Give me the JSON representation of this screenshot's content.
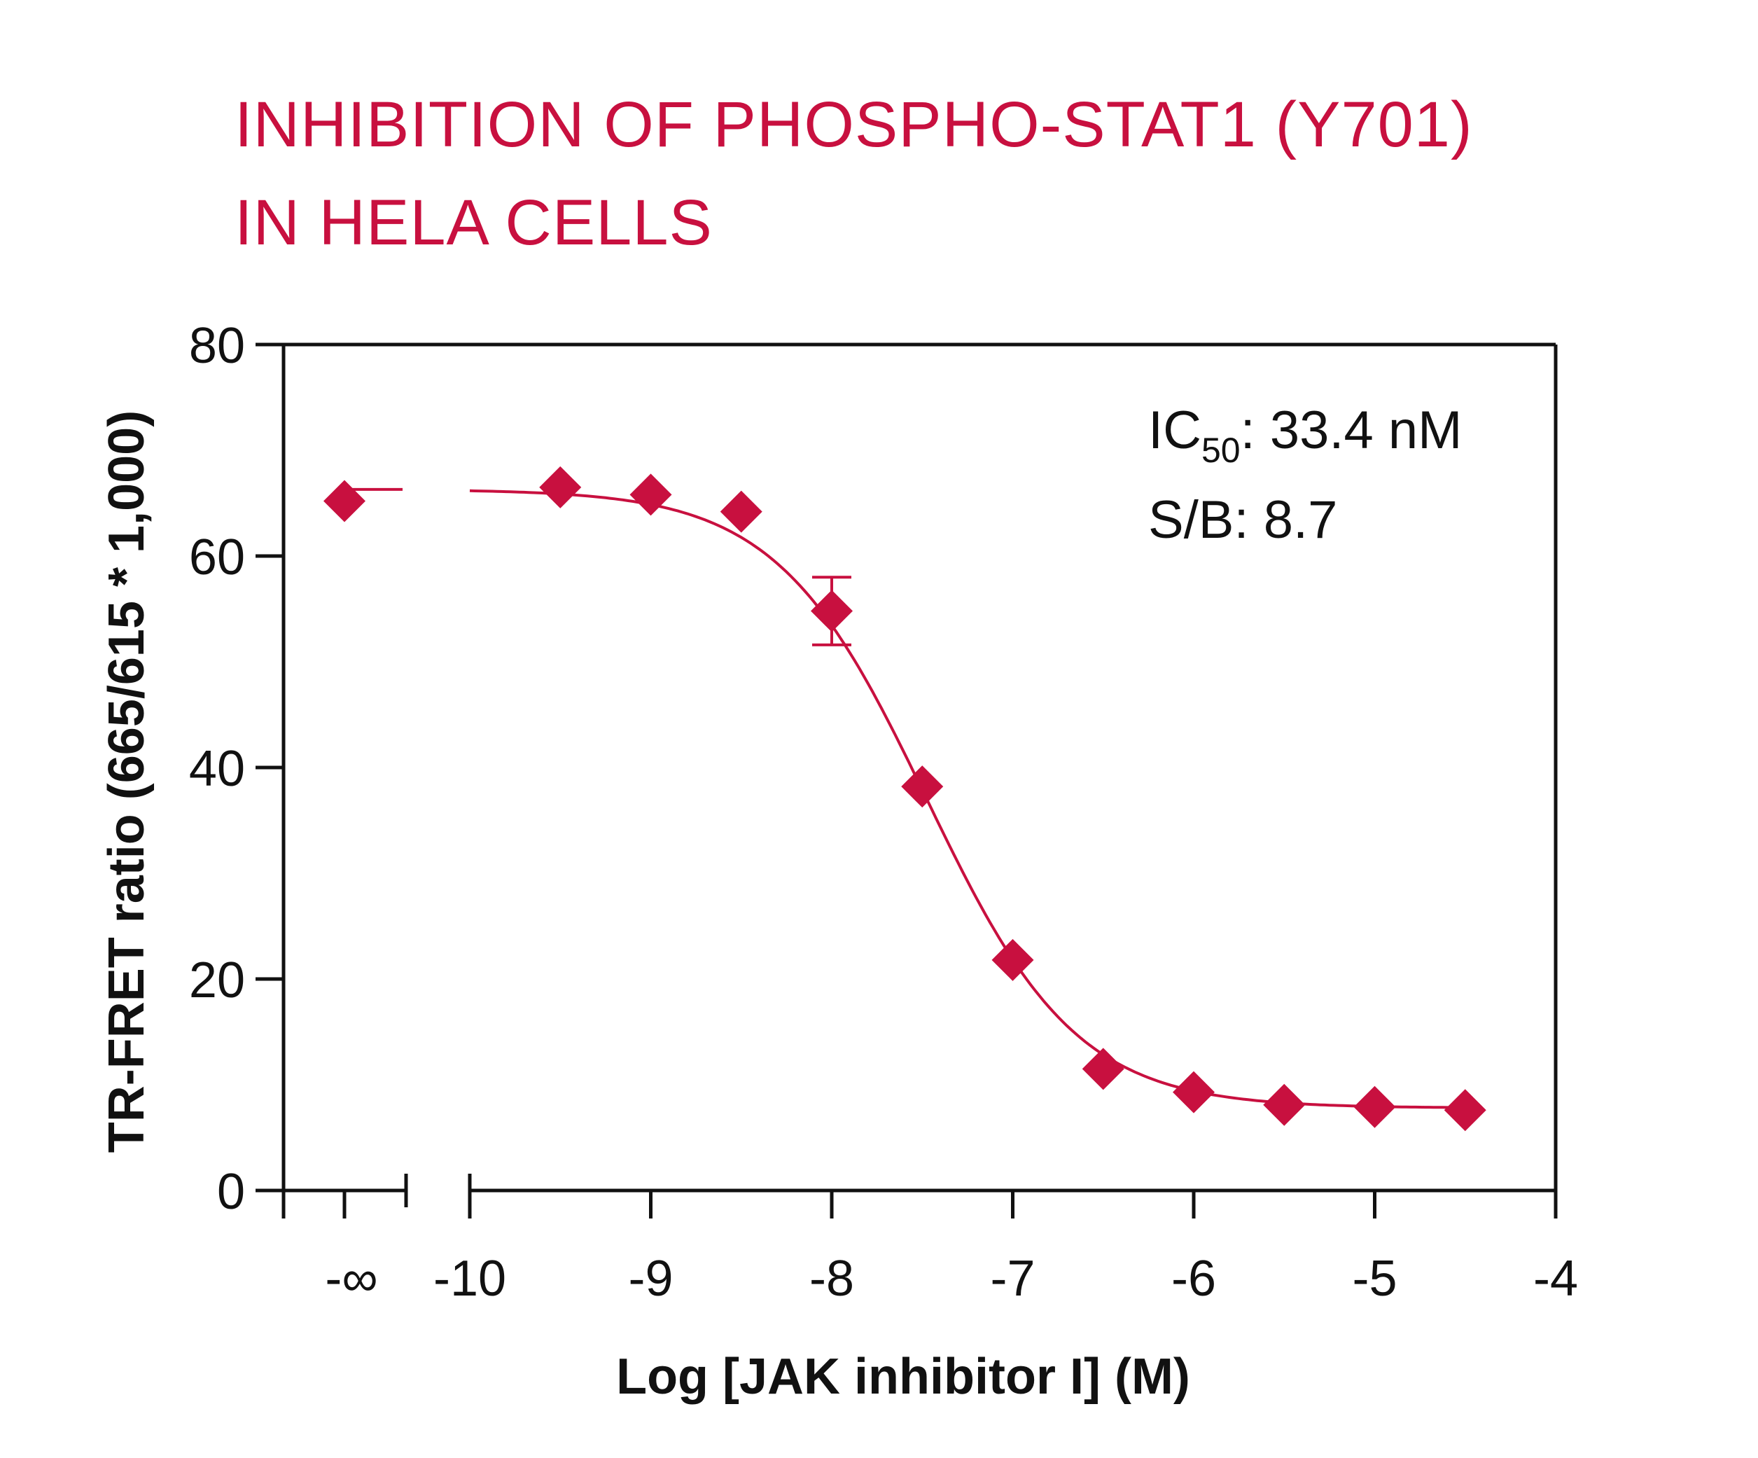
{
  "title_lines": [
    "INHIBITION OF PHOSPHO-STAT1 (Y701)",
    "IN HELA CELLS"
  ],
  "colors": {
    "accent": "#c8103f",
    "axis": "#111111"
  },
  "chart_data": {
    "type": "scatter",
    "title": "INHIBITION OF PHOSPHO-STAT1 (Y701) IN HELA CELLS",
    "xlabel": "Log [JAK inhibitor I] (M)",
    "ylabel": "TR-FRET ratio (665/615 * 1,000)",
    "xlim": [
      -10,
      -4
    ],
    "ylim": [
      0,
      80
    ],
    "x_ticks": [
      "-10",
      "-9",
      "-8",
      "-7",
      "-6",
      "-5",
      "-4"
    ],
    "x_tick_values": [
      -10,
      -9,
      -8,
      -7,
      -6,
      -5,
      -4
    ],
    "x_infinity_tick": "-∞",
    "y_ticks": [
      0,
      20,
      40,
      60,
      80
    ],
    "grid": false,
    "series": [
      {
        "marker": "diamond",
        "points": [
          {
            "x": "-∞",
            "y": 65.2
          },
          {
            "x": -9.5,
            "y": 66.5
          },
          {
            "x": -9.0,
            "y": 65.8
          },
          {
            "x": -8.5,
            "y": 64.2
          },
          {
            "x": -8.0,
            "y": 54.8,
            "error": 3.2
          },
          {
            "x": -7.5,
            "y": 38.2
          },
          {
            "x": -7.0,
            "y": 21.8
          },
          {
            "x": -6.5,
            "y": 11.5
          },
          {
            "x": -6.0,
            "y": 9.3
          },
          {
            "x": -5.5,
            "y": 8.1
          },
          {
            "x": -5.0,
            "y": 7.9
          },
          {
            "x": -4.5,
            "y": 7.6
          }
        ]
      }
    ],
    "fit": {
      "model": "four-parameter logistic",
      "top": 66.3,
      "bottom": 7.8,
      "log_ic50": -7.476,
      "hill_slope": -1.05
    },
    "annotations": {
      "ic50_prefix": "IC",
      "ic50_subscript": "50",
      "ic50_value": ": 33.4 nM",
      "sb": "S/B: 8.7"
    }
  }
}
